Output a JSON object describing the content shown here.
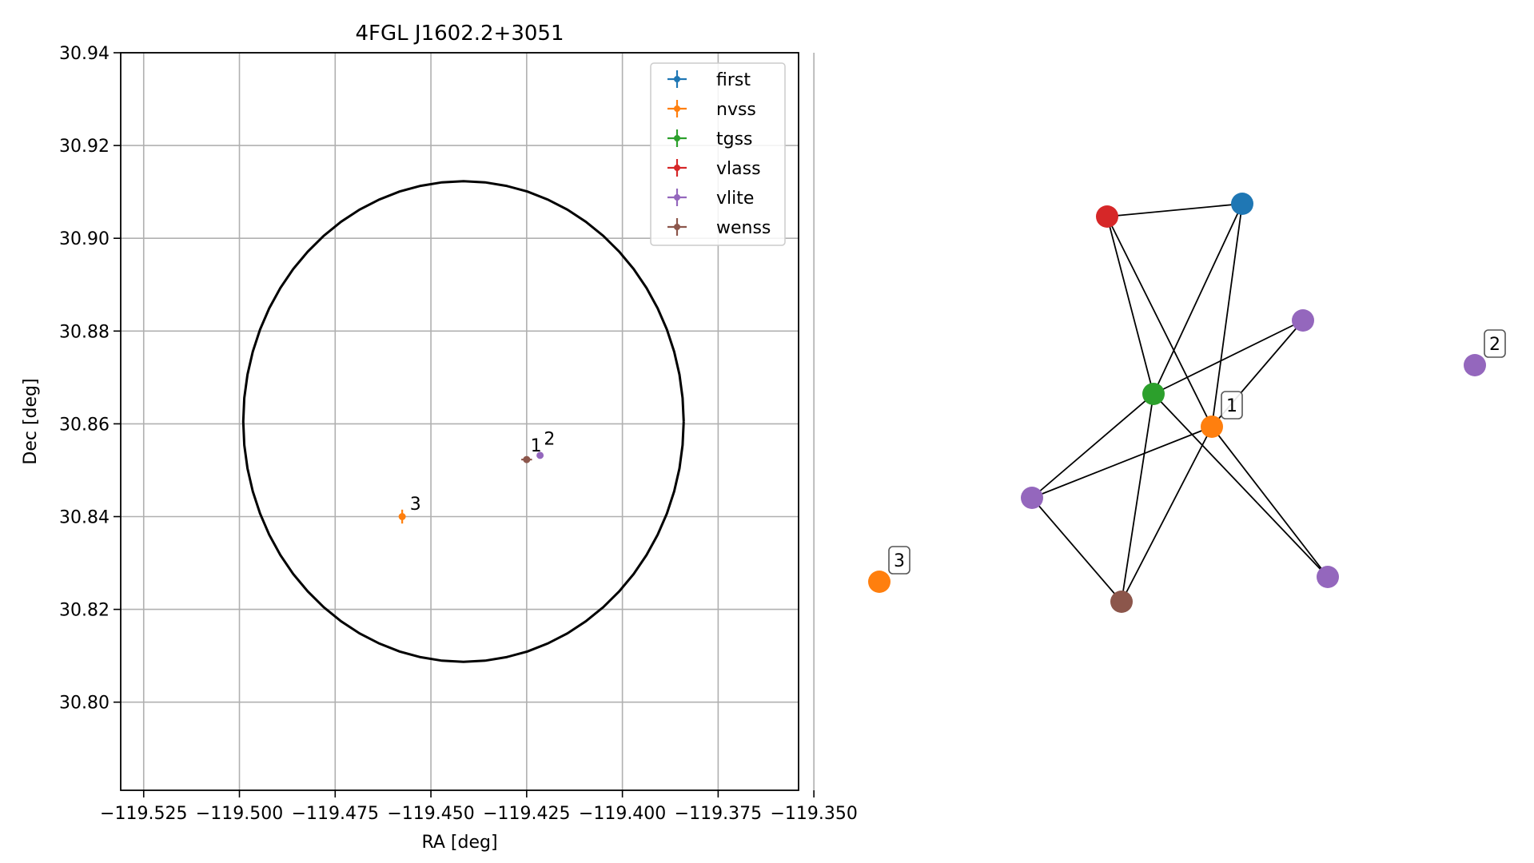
{
  "chart_data": [
    {
      "type": "scatter",
      "title": "4FGL J1602.2+3051",
      "xlabel": "RA [deg]",
      "ylabel": "Dec [deg]",
      "xlim": [
        -119.531,
        -119.354
      ],
      "ylim": [
        30.781,
        30.94
      ],
      "xticks": [
        -119.525,
        -119.5,
        -119.475,
        -119.45,
        -119.425,
        -119.4,
        -119.375,
        -119.35
      ],
      "xtick_labels": [
        "−119.525",
        "−119.500",
        "−119.475",
        "−119.450",
        "−119.425",
        "−119.400",
        "−119.375",
        "−119.350"
      ],
      "yticks": [
        30.8,
        30.82,
        30.84,
        30.86,
        30.88,
        30.9,
        30.92,
        30.94
      ],
      "ytick_labels": [
        "30.80",
        "30.82",
        "30.84",
        "30.86",
        "30.88",
        "30.90",
        "30.92",
        "30.94"
      ],
      "grid": true,
      "legend_position": "top-right",
      "ellipse": {
        "center": [
          -119.4415,
          30.8605
        ],
        "ra_radius": 0.0575,
        "dec_radius": 0.0518,
        "color": "#000000"
      },
      "series": [
        {
          "name": "first",
          "color": "#1f77b4",
          "points": []
        },
        {
          "name": "nvss",
          "color": "#ff7f0e",
          "points": [
            {
              "x": -119.4575,
              "y": 30.84,
              "xerr": 0.0008,
              "yerr": 0.0015
            }
          ]
        },
        {
          "name": "tgss",
          "color": "#2ca02c",
          "points": []
        },
        {
          "name": "vlass",
          "color": "#d62728",
          "points": []
        },
        {
          "name": "vlite",
          "color": "#9467bd",
          "points": [
            {
              "x": -119.4215,
              "y": 30.8532,
              "xerr": 0.0008,
              "yerr": 0.0006
            }
          ]
        },
        {
          "name": "wenss",
          "color": "#8c564b",
          "points": [
            {
              "x": -119.425,
              "y": 30.8523,
              "xerr": 0.0014,
              "yerr": 0.0006
            }
          ]
        }
      ],
      "annotations": [
        {
          "text": "1",
          "x": -119.424,
          "y": 30.854
        },
        {
          "text": "2",
          "x": -119.4205,
          "y": 30.8555
        },
        {
          "text": "3",
          "x": -119.4555,
          "y": 30.8415
        }
      ]
    },
    {
      "type": "graph",
      "nodes": [
        {
          "id": "first",
          "color": "#1f77b4"
        },
        {
          "id": "vlass",
          "color": "#d62728"
        },
        {
          "id": "vlite-a",
          "color": "#9467bd"
        },
        {
          "id": "tgss",
          "color": "#2ca02c"
        },
        {
          "id": "nvss-1",
          "color": "#ff7f0e",
          "label": "1"
        },
        {
          "id": "vlite-2",
          "color": "#9467bd",
          "label": "2"
        },
        {
          "id": "vlite-b",
          "color": "#9467bd"
        },
        {
          "id": "nvss-3",
          "color": "#ff7f0e",
          "label": "3"
        },
        {
          "id": "wenss",
          "color": "#8c564b"
        },
        {
          "id": "vlite-c",
          "color": "#9467bd"
        }
      ],
      "edges": [
        [
          "vlass",
          "first"
        ],
        [
          "vlass",
          "tgss"
        ],
        [
          "vlass",
          "nvss-1"
        ],
        [
          "first",
          "tgss"
        ],
        [
          "first",
          "nvss-1"
        ],
        [
          "tgss",
          "vlite-a"
        ],
        [
          "tgss",
          "vlite-b"
        ],
        [
          "tgss",
          "wenss"
        ],
        [
          "tgss",
          "vlite-c"
        ],
        [
          "nvss-1",
          "vlite-a"
        ],
        [
          "nvss-1",
          "vlite-b"
        ],
        [
          "nvss-1",
          "wenss"
        ],
        [
          "nvss-1",
          "vlite-c"
        ],
        [
          "vlite-b",
          "wenss"
        ]
      ]
    }
  ]
}
